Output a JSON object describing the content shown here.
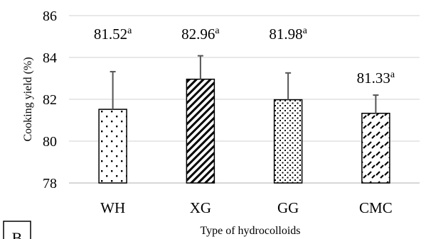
{
  "chart_data": {
    "type": "bar",
    "categories": [
      "WH",
      "XG",
      "GG",
      "CMC"
    ],
    "values": [
      81.52,
      82.96,
      81.98,
      81.33
    ],
    "error_upper": [
      1.8,
      1.12,
      1.28,
      0.87
    ],
    "patterns": [
      "sparse-dots",
      "diagonal-stripes",
      "dense-dots",
      "dashes"
    ],
    "data_labels": [
      {
        "value": "81.52",
        "letter": "a"
      },
      {
        "value": "82.96",
        "letter": "a"
      },
      {
        "value": "81.98",
        "letter": "a"
      },
      {
        "value": "81.33",
        "letter": "a"
      }
    ],
    "ylabel": "Cooking yield (%)",
    "xlabel": "Type of hydrocolloids",
    "ylim": [
      78,
      86
    ],
    "yticks": [
      "78",
      "80",
      "82",
      "84",
      "86"
    ],
    "grid": true,
    "panel_label": "B"
  }
}
